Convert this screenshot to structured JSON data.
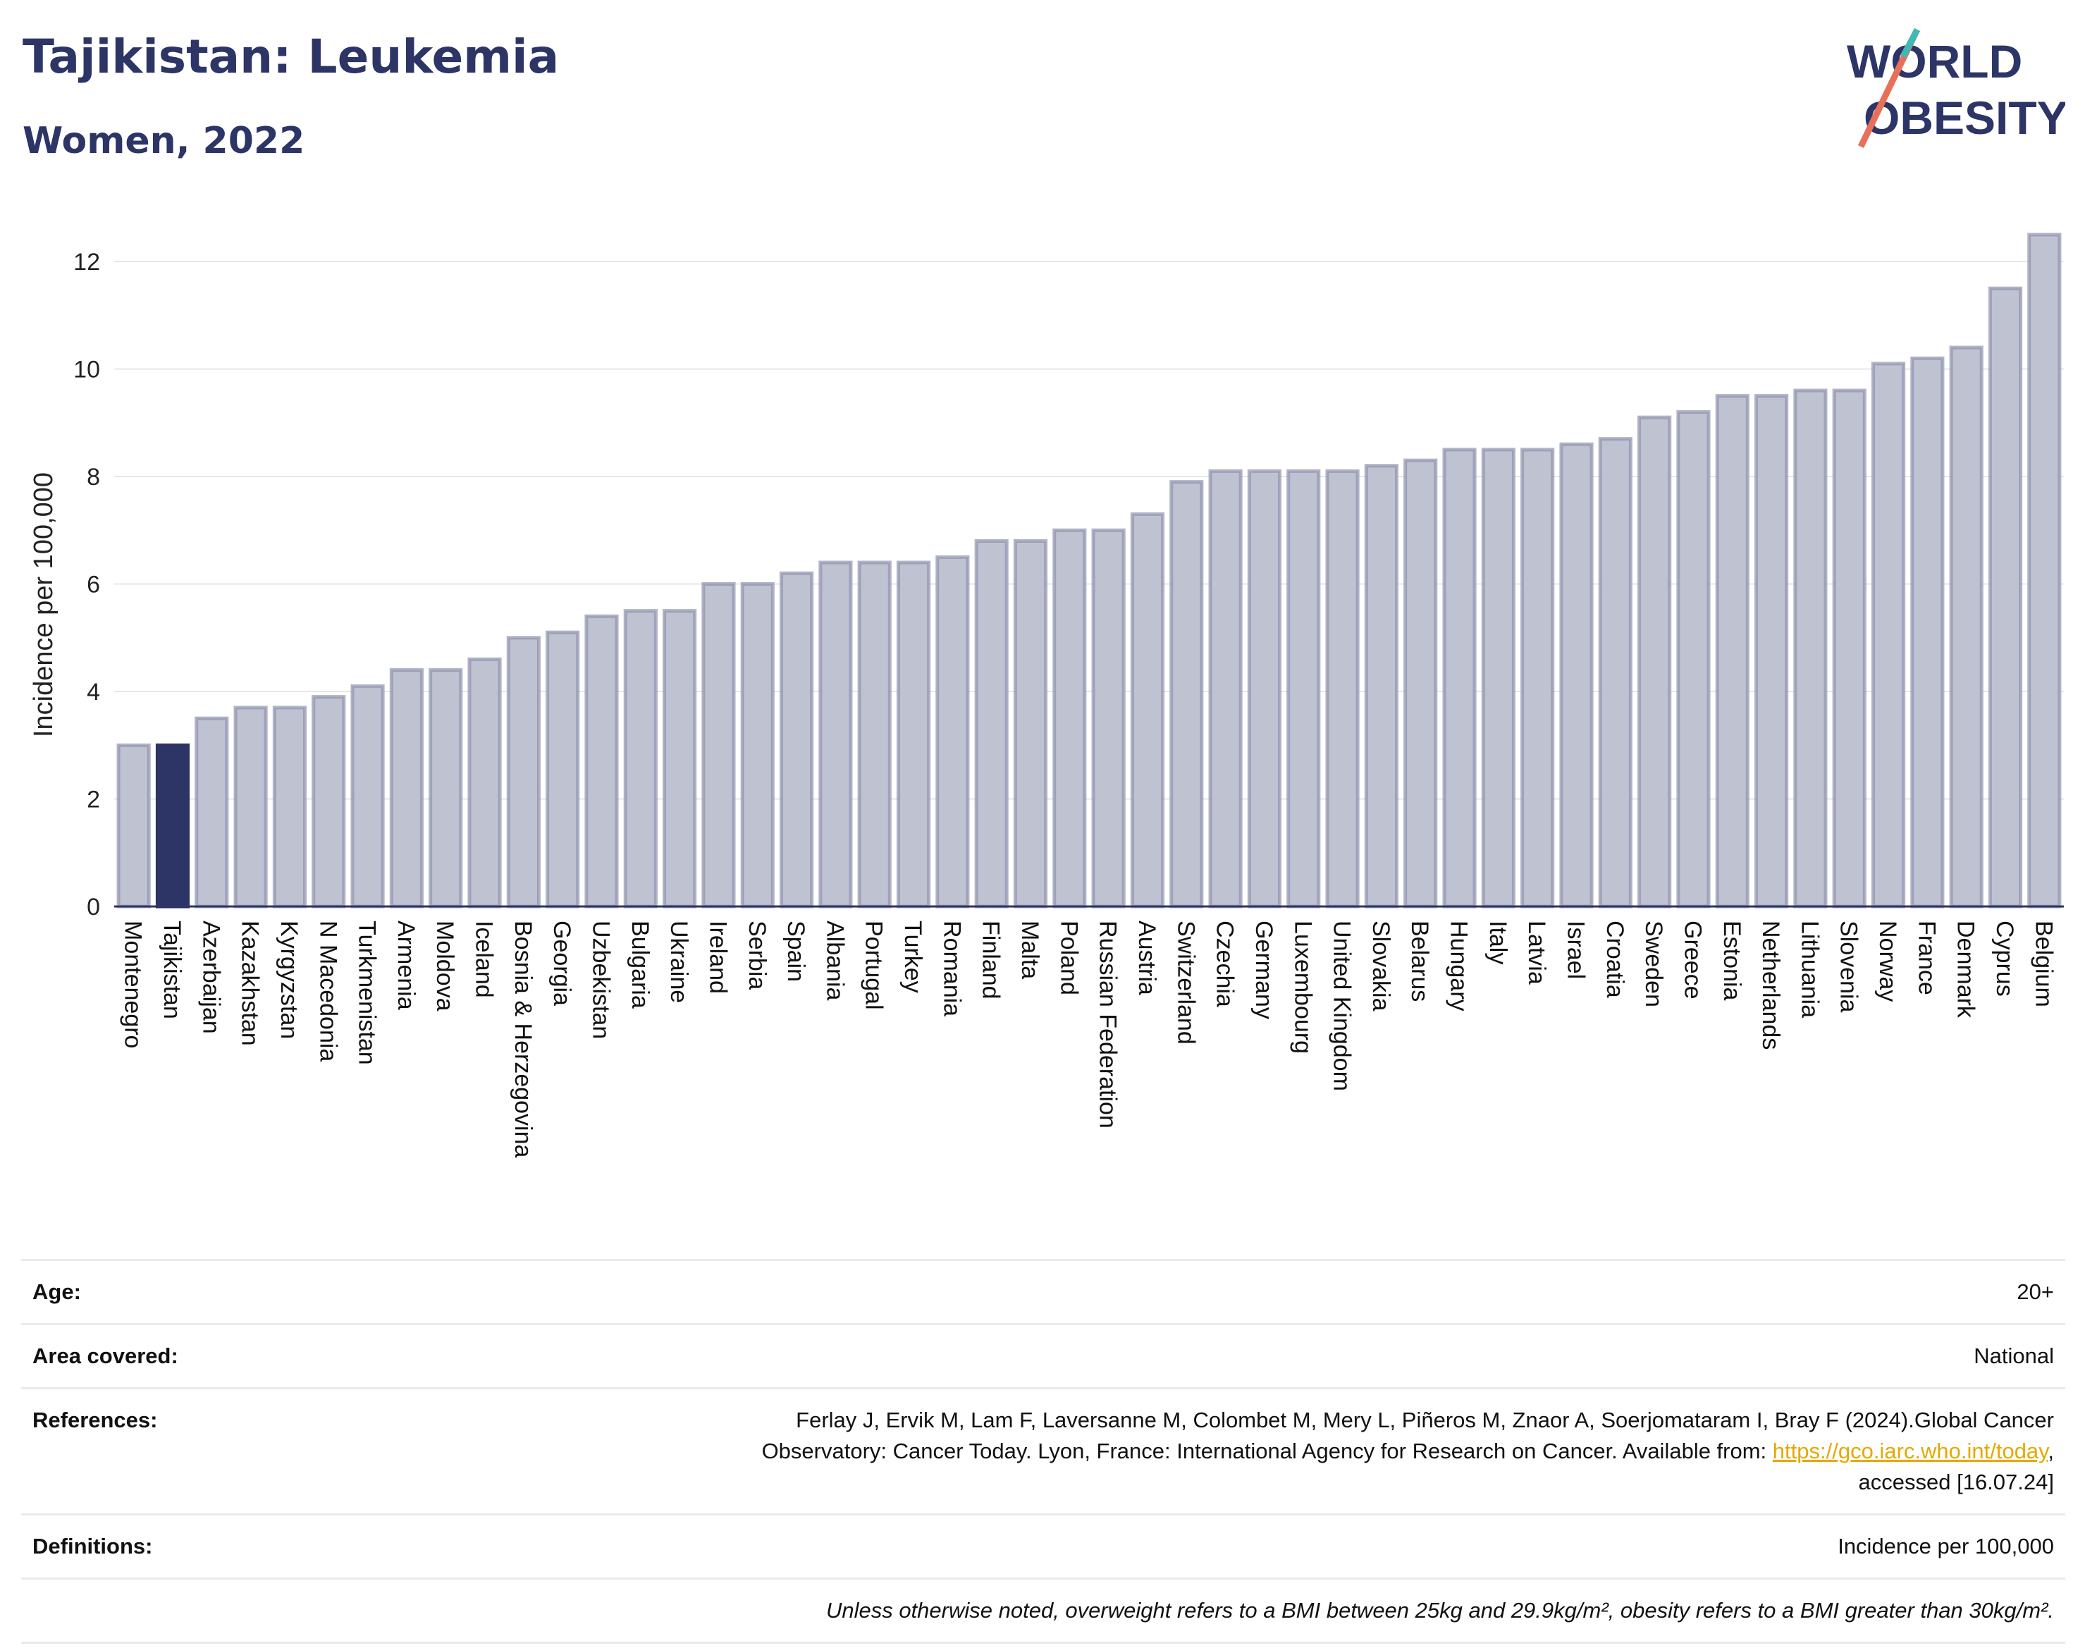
{
  "header": {
    "title": "Tajikistan: Leukemia",
    "subtitle": "Women, 2022"
  },
  "logo": {
    "line1": "WORLD",
    "line2": "OBESITY"
  },
  "colors": {
    "highlight": "#2c3566",
    "bar": "#bfc2d1",
    "bar_stroke": "#8e92ae",
    "title": "#2c3566",
    "link": "#e6a800"
  },
  "chart_data": {
    "type": "bar",
    "ylabel": "Incidence per 100,000",
    "xlabel": "",
    "ylim": [
      0,
      12.8
    ],
    "yticks": [
      0,
      2,
      4,
      6,
      8,
      10,
      12
    ],
    "highlight": "Tajikistan",
    "grid": true,
    "categories": [
      "Montenegro",
      "Tajikistan",
      "Azerbaijan",
      "Kazakhstan",
      "Kyrgyzstan",
      "N Macedonia",
      "Turkmenistan",
      "Armenia",
      "Moldova",
      "Iceland",
      "Bosnia & Herzegovina",
      "Georgia",
      "Uzbekistan",
      "Bulgaria",
      "Ukraine",
      "Ireland",
      "Serbia",
      "Spain",
      "Albania",
      "Portugal",
      "Turkey",
      "Romania",
      "Finland",
      "Malta",
      "Poland",
      "Russian Federation",
      "Austria",
      "Switzerland",
      "Czechia",
      "Germany",
      "Luxembourg",
      "United Kingdom",
      "Slovakia",
      "Belarus",
      "Hungary",
      "Italy",
      "Latvia",
      "Israel",
      "Croatia",
      "Sweden",
      "Greece",
      "Estonia",
      "Netherlands",
      "Lithuania",
      "Slovenia",
      "Norway",
      "France",
      "Denmark",
      "Cyprus",
      "Belgium"
    ],
    "values": [
      3.0,
      3.0,
      3.5,
      3.7,
      3.7,
      3.9,
      4.1,
      4.4,
      4.4,
      4.6,
      5.0,
      5.1,
      5.4,
      5.5,
      5.5,
      6.0,
      6.0,
      6.2,
      6.4,
      6.4,
      6.4,
      6.5,
      6.8,
      6.8,
      7.0,
      7.0,
      7.3,
      7.9,
      8.1,
      8.1,
      8.1,
      8.1,
      8.2,
      8.3,
      8.5,
      8.5,
      8.5,
      8.6,
      8.7,
      9.1,
      9.2,
      9.5,
      9.5,
      9.6,
      9.6,
      10.1,
      10.2,
      10.4,
      11.5,
      12.5
    ]
  },
  "info": {
    "age_label": "Age:",
    "age_value": "20+",
    "area_label": "Area covered:",
    "area_value": "National",
    "references_label": "References:",
    "references_text_1": "Ferlay J, Ervik M, Lam F, Laversanne M, Colombet M, Mery L, Piñeros M, Znaor A, Soerjomataram I, Bray F (2024).Global Cancer",
    "references_text_2": "Observatory: Cancer Today. Lyon, France: International Agency for Research on Cancer. Available from: ",
    "references_link": "https://gco.iarc.who.int/today",
    "references_text_3": ",",
    "references_text_4": "accessed [16.07.24]",
    "definitions_label": "Definitions:",
    "definitions_value": "Incidence per 100,000",
    "note": "Unless otherwise noted, overweight refers to a BMI between 25kg and 29.9kg/m², obesity refers to a BMI greater than 30kg/m²."
  }
}
